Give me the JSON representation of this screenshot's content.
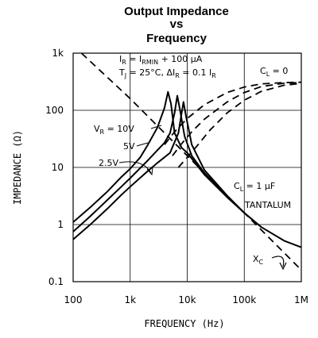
{
  "chart_data": {
    "type": "line",
    "title_lines": [
      "Output Impedance",
      "vs",
      "Frequency"
    ],
    "xlabel": "FREQUENCY (Hz)",
    "ylabel": "IMPEDANCE (Ω)",
    "x_scale": "log",
    "y_scale": "log",
    "xlim": [
      100,
      1000000
    ],
    "ylim": [
      0.1,
      1000
    ],
    "x_ticks": [
      {
        "value": 100,
        "label": "100"
      },
      {
        "value": 1000,
        "label": "1k"
      },
      {
        "value": 10000,
        "label": "10k"
      },
      {
        "value": 100000,
        "label": "100k"
      },
      {
        "value": 1000000,
        "label": "1M"
      }
    ],
    "y_ticks": [
      {
        "value": 1000,
        "label": "1k"
      },
      {
        "value": 100,
        "label": "100"
      },
      {
        "value": 10,
        "label": "10"
      },
      {
        "value": 1,
        "label": "1"
      },
      {
        "value": 0.1,
        "label": "0.1"
      }
    ],
    "grid": true,
    "conditions": {
      "line1": {
        "pre": "I",
        "sub1": "R",
        "mid": " = I",
        "sub2": "RMIN",
        "post": " + 100 μA"
      },
      "line2": {
        "pre": "T",
        "sub1": "J",
        "mid": " = 25°C, ΔI",
        "sub2": "R",
        "post": " = 0.1 I",
        "sub3": "R"
      }
    },
    "annotations": {
      "cl0": {
        "pre": "C",
        "sub": "L",
        "post": " = 0"
      },
      "cl1": {
        "pre": "C",
        "sub": "L",
        "post": " = 1 μF"
      },
      "tantalum": "TANTALUM",
      "xc": {
        "pre": "X",
        "sub": "C"
      },
      "vr10": {
        "pre": "V",
        "sub": "R",
        "post": " = 10V"
      },
      "v5": "5V",
      "v25": "2.5V"
    },
    "series": [
      {
        "name": "CL = 1 μF, VR = 10V",
        "style": "solid",
        "points": [
          [
            100,
            1.1
          ],
          [
            200,
            2.0
          ],
          [
            400,
            3.8
          ],
          [
            700,
            6.8
          ],
          [
            1000,
            9.5
          ],
          [
            1500,
            15
          ],
          [
            2000,
            24
          ],
          [
            3000,
            50
          ],
          [
            4000,
            110
          ],
          [
            4600,
            210
          ],
          [
            5200,
            130
          ],
          [
            6000,
            40
          ],
          [
            8000,
            22
          ],
          [
            10000,
            18
          ],
          [
            20000,
            7.5
          ],
          [
            50000,
            3.0
          ],
          [
            100000,
            1.6
          ],
          [
            200000,
            0.9
          ],
          [
            500000,
            0.52
          ],
          [
            1000000,
            0.4
          ]
        ]
      },
      {
        "name": "CL = 1 μF, VR = 5V",
        "style": "solid",
        "points": [
          [
            100,
            0.75
          ],
          [
            200,
            1.4
          ],
          [
            400,
            2.7
          ],
          [
            700,
            4.6
          ],
          [
            1000,
            6.5
          ],
          [
            2000,
            13
          ],
          [
            3000,
            20
          ],
          [
            4000,
            27
          ],
          [
            5000,
            40
          ],
          [
            6000,
            90
          ],
          [
            6700,
            180
          ],
          [
            7500,
            100
          ],
          [
            9000,
            35
          ],
          [
            12000,
            16
          ],
          [
            20000,
            8.0
          ],
          [
            50000,
            3.1
          ],
          [
            100000,
            1.6
          ]
        ]
      },
      {
        "name": "CL = 1 μF, VR = 2.5V",
        "style": "solid",
        "points": [
          [
            100,
            0.55
          ],
          [
            200,
            1.0
          ],
          [
            400,
            1.9
          ],
          [
            700,
            3.3
          ],
          [
            1000,
            4.6
          ],
          [
            2000,
            8.5
          ],
          [
            3000,
            12
          ],
          [
            5000,
            18
          ],
          [
            7000,
            40
          ],
          [
            8000,
            90
          ],
          [
            8600,
            140
          ],
          [
            9500,
            80
          ],
          [
            12000,
            25
          ],
          [
            20000,
            9.0
          ],
          [
            50000,
            3.2
          ],
          [
            100000,
            1.6
          ]
        ]
      },
      {
        "name": "CL = 0, VR = 10V",
        "style": "dashed",
        "points": [
          [
            4000,
            25
          ],
          [
            6000,
            42
          ],
          [
            10000,
            72
          ],
          [
            20000,
            125
          ],
          [
            50000,
            205
          ],
          [
            100000,
            255
          ],
          [
            200000,
            290
          ],
          [
            500000,
            305
          ],
          [
            1000000,
            310
          ]
        ]
      },
      {
        "name": "CL = 0, VR = 5V",
        "style": "dashed",
        "points": [
          [
            5500,
            16
          ],
          [
            8000,
            26
          ],
          [
            12000,
            42
          ],
          [
            20000,
            70
          ],
          [
            50000,
            140
          ],
          [
            100000,
            205
          ],
          [
            200000,
            260
          ],
          [
            500000,
            298
          ],
          [
            1000000,
            305
          ]
        ]
      },
      {
        "name": "CL = 0, VR = 2.5V",
        "style": "dashed",
        "points": [
          [
            7000,
            10
          ],
          [
            10000,
            15
          ],
          [
            15000,
            24
          ],
          [
            25000,
            45
          ],
          [
            50000,
            90
          ],
          [
            100000,
            150
          ],
          [
            200000,
            215
          ],
          [
            500000,
            275
          ],
          [
            1000000,
            295
          ]
        ]
      },
      {
        "name": "XC",
        "style": "dashed",
        "points": [
          [
            140,
            1000
          ],
          [
            1000,
            160
          ],
          [
            10000,
            16
          ],
          [
            100000,
            1.6
          ],
          [
            1000000,
            0.16
          ]
        ]
      }
    ]
  }
}
